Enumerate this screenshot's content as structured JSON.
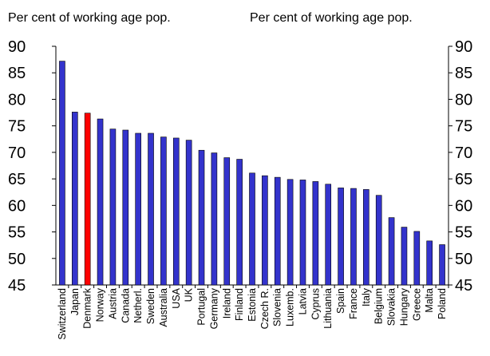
{
  "chart_data": {
    "type": "bar",
    "title": "",
    "ylabel_left": "Per cent of working age pop.",
    "ylabel_right": "Per cent of working age pop.",
    "ylim": [
      45,
      90
    ],
    "yticks": [
      90,
      85,
      80,
      75,
      70,
      65,
      60,
      55,
      50,
      45
    ],
    "grid": false,
    "bar_color": "#3333cc",
    "highlight_color": "#ff0000",
    "highlight_category": "Denmark",
    "categories": [
      "Switzerland",
      "Japan",
      "Denmark",
      "Norway",
      "Austria",
      "Canada",
      "Netherl.",
      "Sweden",
      "Australia",
      "USA",
      "UK",
      "Portugal",
      "Germany",
      "Ireland",
      "Finland",
      "Estonia",
      "Czech R.",
      "Slovenia",
      "Luxemb.",
      "Latvia",
      "Cyprus",
      "Lithuania",
      "Spain",
      "France",
      "Italy",
      "Belgium",
      "Slovakia",
      "Hungary",
      "Greece",
      "Malta",
      "Poland"
    ],
    "values": [
      87.2,
      77.6,
      77.4,
      76.3,
      74.4,
      74.2,
      73.6,
      73.6,
      72.9,
      72.7,
      72.3,
      70.4,
      69.9,
      69.0,
      68.7,
      66.1,
      65.6,
      65.3,
      64.9,
      64.8,
      64.5,
      64.0,
      63.3,
      63.2,
      63.0,
      61.9,
      57.7,
      55.9,
      55.1,
      53.3,
      52.6
    ]
  }
}
